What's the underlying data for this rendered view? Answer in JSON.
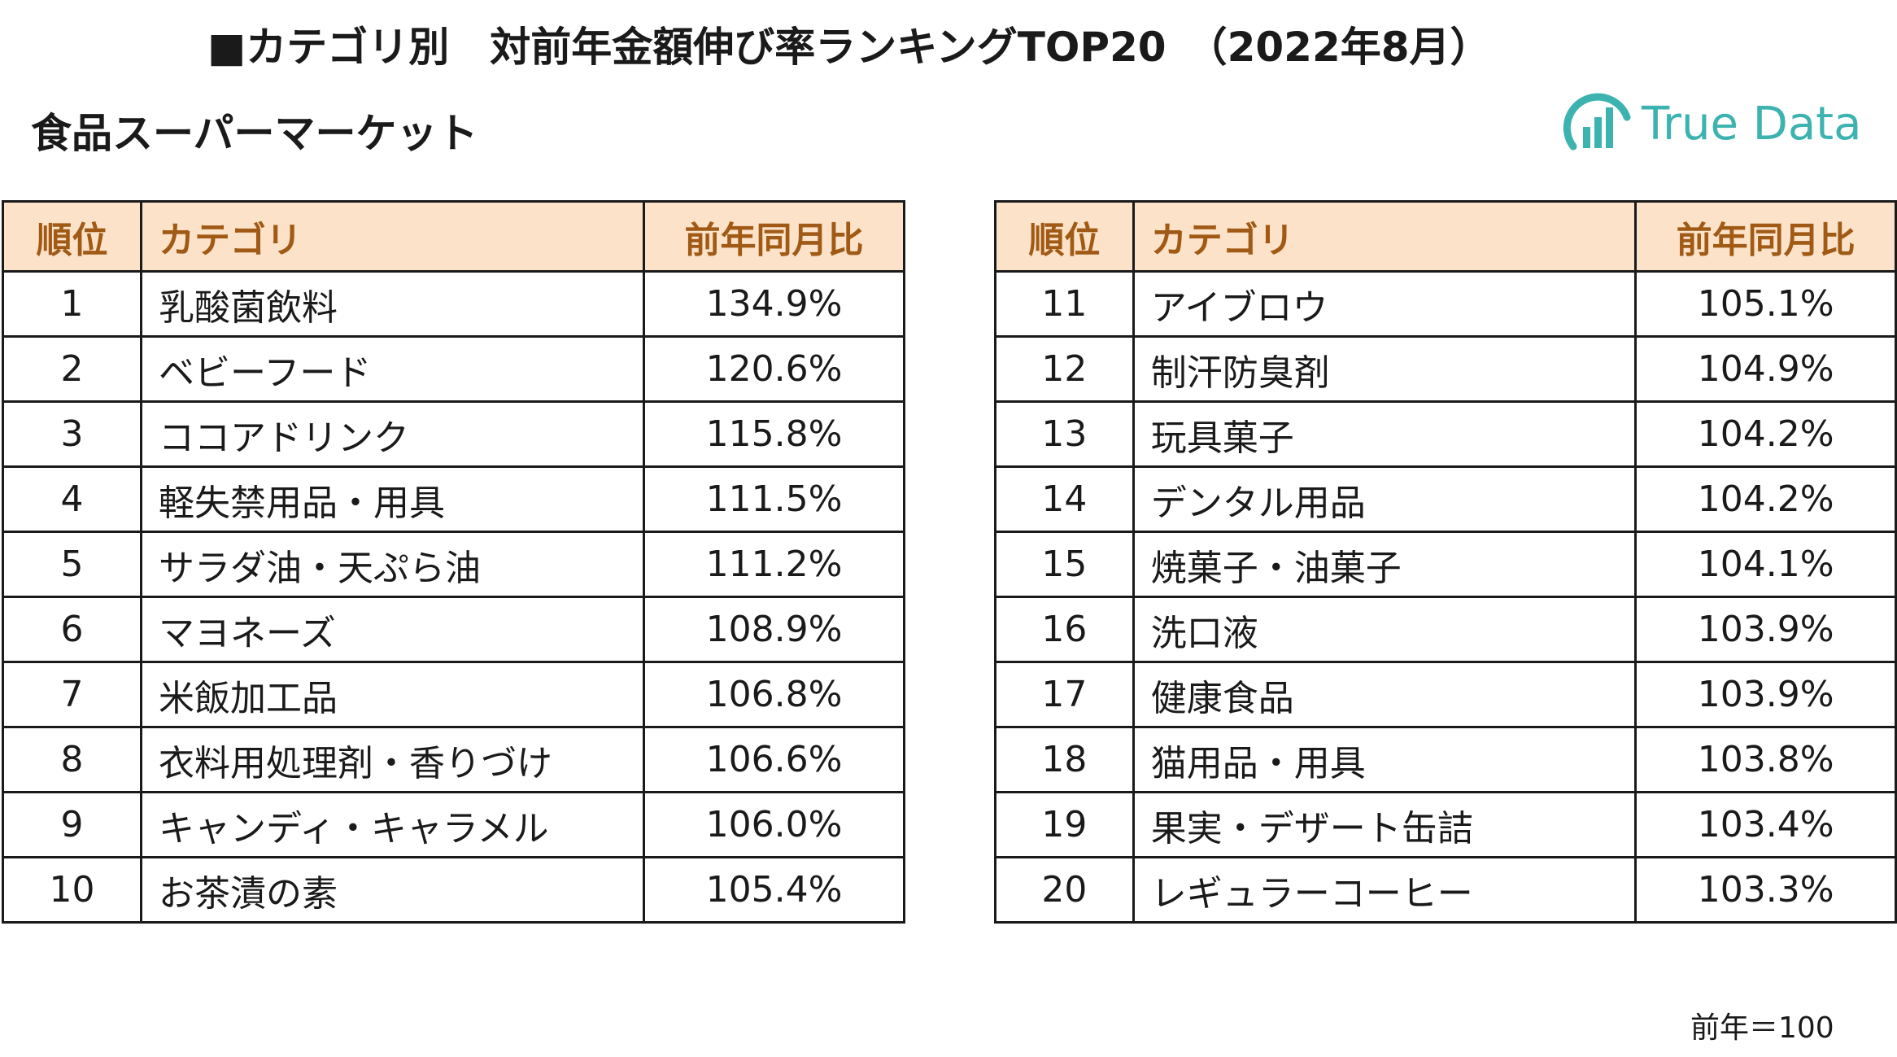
{
  "header": {
    "title": "■カテゴリ別　対前年金額伸び率ランキングTOP20　（2022年8月）",
    "subtitle": "食品スーパーマーケット"
  },
  "logo": {
    "text": "True Data",
    "icon": "bar-chart-ring-logo-icon",
    "color": "#3db3b0"
  },
  "table_headers": {
    "rank": "順位",
    "category": "カテゴリ",
    "ratio": "前年同月比"
  },
  "colors": {
    "header_bg": "#fbe2c8",
    "header_text": "#a05a16",
    "border": "#1a1a1a"
  },
  "rankings_left": [
    {
      "rank": "1",
      "category": "乳酸菌飲料",
      "ratio": "134.9%"
    },
    {
      "rank": "2",
      "category": "ベビーフード",
      "ratio": "120.6%"
    },
    {
      "rank": "3",
      "category": "ココアドリンク",
      "ratio": "115.8%"
    },
    {
      "rank": "4",
      "category": "軽失禁用品・用具",
      "ratio": "111.5%"
    },
    {
      "rank": "5",
      "category": "サラダ油・天ぷら油",
      "ratio": "111.2%"
    },
    {
      "rank": "6",
      "category": "マヨネーズ",
      "ratio": "108.9%"
    },
    {
      "rank": "7",
      "category": "米飯加工品",
      "ratio": "106.8%"
    },
    {
      "rank": "8",
      "category": "衣料用処理剤・香りづけ",
      "ratio": "106.6%"
    },
    {
      "rank": "9",
      "category": "キャンディ・キャラメル",
      "ratio": "106.0%"
    },
    {
      "rank": "10",
      "category": "お茶漬の素",
      "ratio": "105.4%"
    }
  ],
  "rankings_right": [
    {
      "rank": "11",
      "category": "アイブロウ",
      "ratio": "105.1%"
    },
    {
      "rank": "12",
      "category": "制汗防臭剤",
      "ratio": "104.9%"
    },
    {
      "rank": "13",
      "category": "玩具菓子",
      "ratio": "104.2%"
    },
    {
      "rank": "14",
      "category": "デンタル用品",
      "ratio": "104.2%"
    },
    {
      "rank": "15",
      "category": "焼菓子・油菓子",
      "ratio": "104.1%"
    },
    {
      "rank": "16",
      "category": "洗口液",
      "ratio": "103.9%"
    },
    {
      "rank": "17",
      "category": "健康食品",
      "ratio": "103.9%"
    },
    {
      "rank": "18",
      "category": "猫用品・用具",
      "ratio": "103.8%"
    },
    {
      "rank": "19",
      "category": "果実・デザート缶詰",
      "ratio": "103.4%"
    },
    {
      "rank": "20",
      "category": "レギュラーコーヒー",
      "ratio": "103.3%"
    }
  ],
  "footnote": "前年＝100"
}
